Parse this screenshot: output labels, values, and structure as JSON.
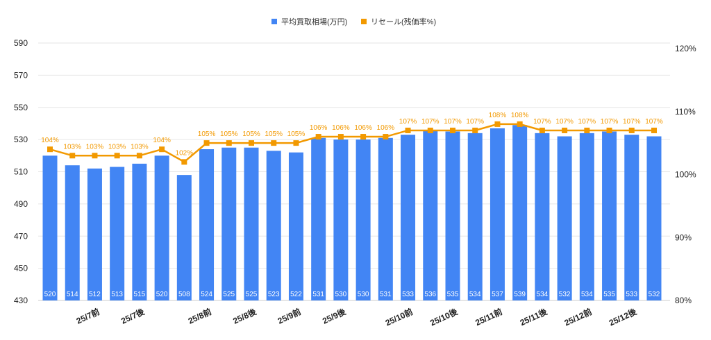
{
  "chart_data": {
    "type": "bar+line",
    "legend": {
      "placement": "top"
    },
    "grid": true,
    "categories_shown": [
      {
        "index": 2,
        "label": "25/7前"
      },
      {
        "index": 4,
        "label": "25/7後"
      },
      {
        "index": 7,
        "label": "25/8前"
      },
      {
        "index": 9,
        "label": "25/8後"
      },
      {
        "index": 11,
        "label": "25/9前"
      },
      {
        "index": 13,
        "label": "25/9後"
      },
      {
        "index": 16,
        "label": "25/10前"
      },
      {
        "index": 18,
        "label": "25/10後"
      },
      {
        "index": 20,
        "label": "25/11前"
      },
      {
        "index": 22,
        "label": "25/11後"
      },
      {
        "index": 24,
        "label": "25/12前"
      },
      {
        "index": 26,
        "label": "25/12後"
      }
    ],
    "series": [
      {
        "name": "平均買取相場(万円)",
        "type": "bar",
        "axis": "left",
        "color": "#4285f4",
        "values": [
          520,
          514,
          512,
          513,
          515,
          520,
          508,
          524,
          525,
          525,
          523,
          522,
          531,
          530,
          530,
          531,
          533,
          536,
          535,
          534,
          537,
          539,
          534,
          532,
          534,
          535,
          533,
          532
        ]
      },
      {
        "name": "リセール(残価率%)",
        "type": "line",
        "axis": "right",
        "color": "#f29900",
        "values": [
          104,
          103,
          103,
          103,
          103,
          104,
          102,
          105,
          105,
          105,
          105,
          105,
          106,
          106,
          106,
          106,
          107,
          107,
          107,
          107,
          108,
          108,
          107,
          107,
          107,
          107,
          107,
          107
        ]
      }
    ],
    "left_axis": {
      "ylim": [
        430,
        590
      ],
      "ticks": [
        430,
        450,
        470,
        490,
        510,
        530,
        550,
        570,
        590
      ]
    },
    "right_axis": {
      "ylim": [
        80,
        120
      ],
      "ticks": [
        80,
        90,
        100,
        110,
        120
      ],
      "suffix": "%"
    }
  }
}
